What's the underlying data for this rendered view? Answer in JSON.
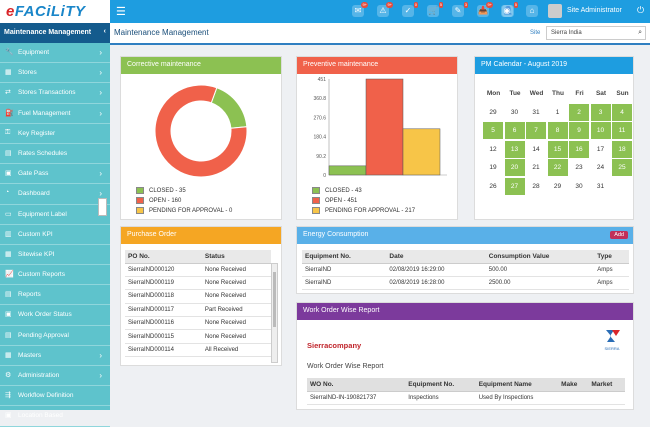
{
  "app": {
    "logo_main": "FACiLiTY",
    "logo_prefix": "e"
  },
  "topbar": {
    "user": "Site Administrator",
    "icons": [
      {
        "name": "notifications-icon",
        "badge": "9+"
      },
      {
        "name": "alerts-icon",
        "badge": "9+"
      },
      {
        "name": "tasks-icon",
        "badge": "0"
      },
      {
        "name": "cart-icon",
        "badge": "5"
      },
      {
        "name": "tools-icon",
        "badge": "3"
      },
      {
        "name": "inbox-icon",
        "badge": "9+"
      },
      {
        "name": "user-badge-icon",
        "badge": "5"
      },
      {
        "name": "globe-icon",
        "badge": ""
      },
      {
        "name": "home-icon",
        "badge": ""
      }
    ]
  },
  "sidebar": {
    "title": "Maintenance Management",
    "items": [
      {
        "label": "Equipment",
        "icon": "wrench-icon",
        "chevron": true
      },
      {
        "label": "Stores",
        "icon": "store-icon",
        "chevron": true
      },
      {
        "label": "Stores Transactions",
        "icon": "transaction-icon",
        "chevron": true
      },
      {
        "label": "Fuel Management",
        "icon": "fuel-icon",
        "chevron": true
      },
      {
        "label": "Key Register",
        "icon": "key-icon",
        "chevron": false
      },
      {
        "label": "Rates Schedules",
        "icon": "rates-icon",
        "chevron": false
      },
      {
        "label": "Gate Pass",
        "icon": "gatepass-icon",
        "chevron": true
      },
      {
        "label": "Dashboard",
        "icon": "dashboard-icon",
        "chevron": true
      },
      {
        "label": "Equipment Label",
        "icon": "label-icon",
        "chevron": false
      },
      {
        "label": "Custom KPI",
        "icon": "kpi-icon",
        "chevron": false
      },
      {
        "label": "Sitewise KPI",
        "icon": "chart-icon",
        "chevron": false
      },
      {
        "label": "Custom Reports",
        "icon": "report-icon",
        "chevron": false
      },
      {
        "label": "Reports",
        "icon": "reports-icon",
        "chevron": false
      },
      {
        "label": "Work Order Status",
        "icon": "workorder-icon",
        "chevron": false
      },
      {
        "label": "Pending Approval",
        "icon": "approval-icon",
        "chevron": false
      },
      {
        "label": "Masters",
        "icon": "masters-icon",
        "chevron": true
      },
      {
        "label": "Administration",
        "icon": "admin-icon",
        "chevron": true
      },
      {
        "label": "Workflow Definition",
        "icon": "workflow-icon",
        "chevron": false
      },
      {
        "label": "Location Based",
        "icon": "location-icon",
        "chevron": false
      }
    ]
  },
  "header": {
    "title": "Maintenance Management",
    "site_label": "Site",
    "site_value": "Sierra India"
  },
  "corrective": {
    "title": "Corrective maintenance",
    "legend": [
      "CLOSED - 35",
      "OPEN - 160",
      "PENDING FOR APPROVAL - 0"
    ],
    "colors": [
      "#8cc152",
      "#f0614a",
      "#f7c548"
    ]
  },
  "preventive": {
    "title": "Preventive maintenance",
    "legend": [
      "CLOSED - 43",
      "OPEN - 451",
      "PENDING FOR APPROVAL - 217"
    ],
    "colors": [
      "#8cc152",
      "#f0614a",
      "#f7c548"
    ]
  },
  "chart_data": [
    {
      "type": "pie",
      "title": "Corrective maintenance",
      "categories": [
        "CLOSED",
        "OPEN",
        "PENDING FOR APPROVAL"
      ],
      "values": [
        35,
        160,
        0
      ],
      "colors": [
        "#8cc152",
        "#f0614a",
        "#f7c548"
      ],
      "donut": true
    },
    {
      "type": "bar",
      "title": "Preventive maintenance",
      "categories": [
        "CLOSED",
        "OPEN",
        "PENDING FOR APPROVAL"
      ],
      "values": [
        43,
        451,
        217
      ],
      "colors": [
        "#8cc152",
        "#f0614a",
        "#f7c548"
      ],
      "yticks": [
        "451",
        "360.8",
        "270.6",
        "180.4",
        "90.2",
        "0"
      ],
      "ylim": [
        0,
        451
      ]
    }
  ],
  "calendar": {
    "title": "PM Calendar - August 2019",
    "days": [
      "Mon",
      "Tue",
      "Wed",
      "Thu",
      "Fri",
      "Sat",
      "Sun"
    ],
    "weeks": [
      [
        {
          "d": "29",
          "g": false
        },
        {
          "d": "30",
          "g": false
        },
        {
          "d": "31",
          "g": false
        },
        {
          "d": "1",
          "g": false
        },
        {
          "d": "2",
          "g": true
        },
        {
          "d": "3",
          "g": true
        },
        {
          "d": "4",
          "g": true
        }
      ],
      [
        {
          "d": "5",
          "g": true
        },
        {
          "d": "6",
          "g": true
        },
        {
          "d": "7",
          "g": true
        },
        {
          "d": "8",
          "g": true
        },
        {
          "d": "9",
          "g": true
        },
        {
          "d": "10",
          "g": true
        },
        {
          "d": "11",
          "g": true
        }
      ],
      [
        {
          "d": "12",
          "g": false
        },
        {
          "d": "13",
          "g": true
        },
        {
          "d": "14",
          "g": false
        },
        {
          "d": "15",
          "g": true
        },
        {
          "d": "16",
          "g": true
        },
        {
          "d": "17",
          "g": false
        },
        {
          "d": "18",
          "g": true
        }
      ],
      [
        {
          "d": "19",
          "g": false
        },
        {
          "d": "20",
          "g": true
        },
        {
          "d": "21",
          "g": false
        },
        {
          "d": "22",
          "g": true
        },
        {
          "d": "23",
          "g": false
        },
        {
          "d": "24",
          "g": false
        },
        {
          "d": "25",
          "g": true
        }
      ],
      [
        {
          "d": "26",
          "g": false
        },
        {
          "d": "27",
          "g": true
        },
        {
          "d": "28",
          "g": false
        },
        {
          "d": "29",
          "g": false
        },
        {
          "d": "30",
          "g": false
        },
        {
          "d": "31",
          "g": false
        },
        {
          "d": "",
          "g": false
        }
      ]
    ]
  },
  "purchase": {
    "title": "Purchase Order",
    "columns": [
      "PO No.",
      "Status"
    ],
    "rows": [
      [
        "SierraIND000120",
        "None Received"
      ],
      [
        "SierraIND000119",
        "None Received"
      ],
      [
        "SierraIND000118",
        "None Received"
      ],
      [
        "SierraIND000117",
        "Part Received"
      ],
      [
        "SierraIND000116",
        "None Received"
      ],
      [
        "SierraIND000115",
        "None Received"
      ],
      [
        "SierraIND000114",
        "All Received"
      ]
    ]
  },
  "energy": {
    "title": "Energy Consumption",
    "add": "Add",
    "columns": [
      "Equipment No.",
      "Date",
      "Consumption Value",
      "Type"
    ],
    "rows": [
      [
        "SierraIND",
        "02/08/2019 16:29:00",
        "500.00",
        "Amps"
      ],
      [
        "SierraIND",
        "02/08/2019 16:28:00",
        "2500.00",
        "Amps"
      ]
    ]
  },
  "workorder": {
    "title": "Work Order Wise Report",
    "company": "Sierracompany",
    "subtitle": "Work Order Wise Report",
    "logo_text": "SIERRA",
    "columns": [
      "WO No.",
      "Equipment No.",
      "Equipment Name",
      "Make",
      "Market"
    ],
    "row": [
      "SierraIND-IN-190821737",
      "Inspections",
      "Used By Inspections",
      "",
      ""
    ]
  }
}
